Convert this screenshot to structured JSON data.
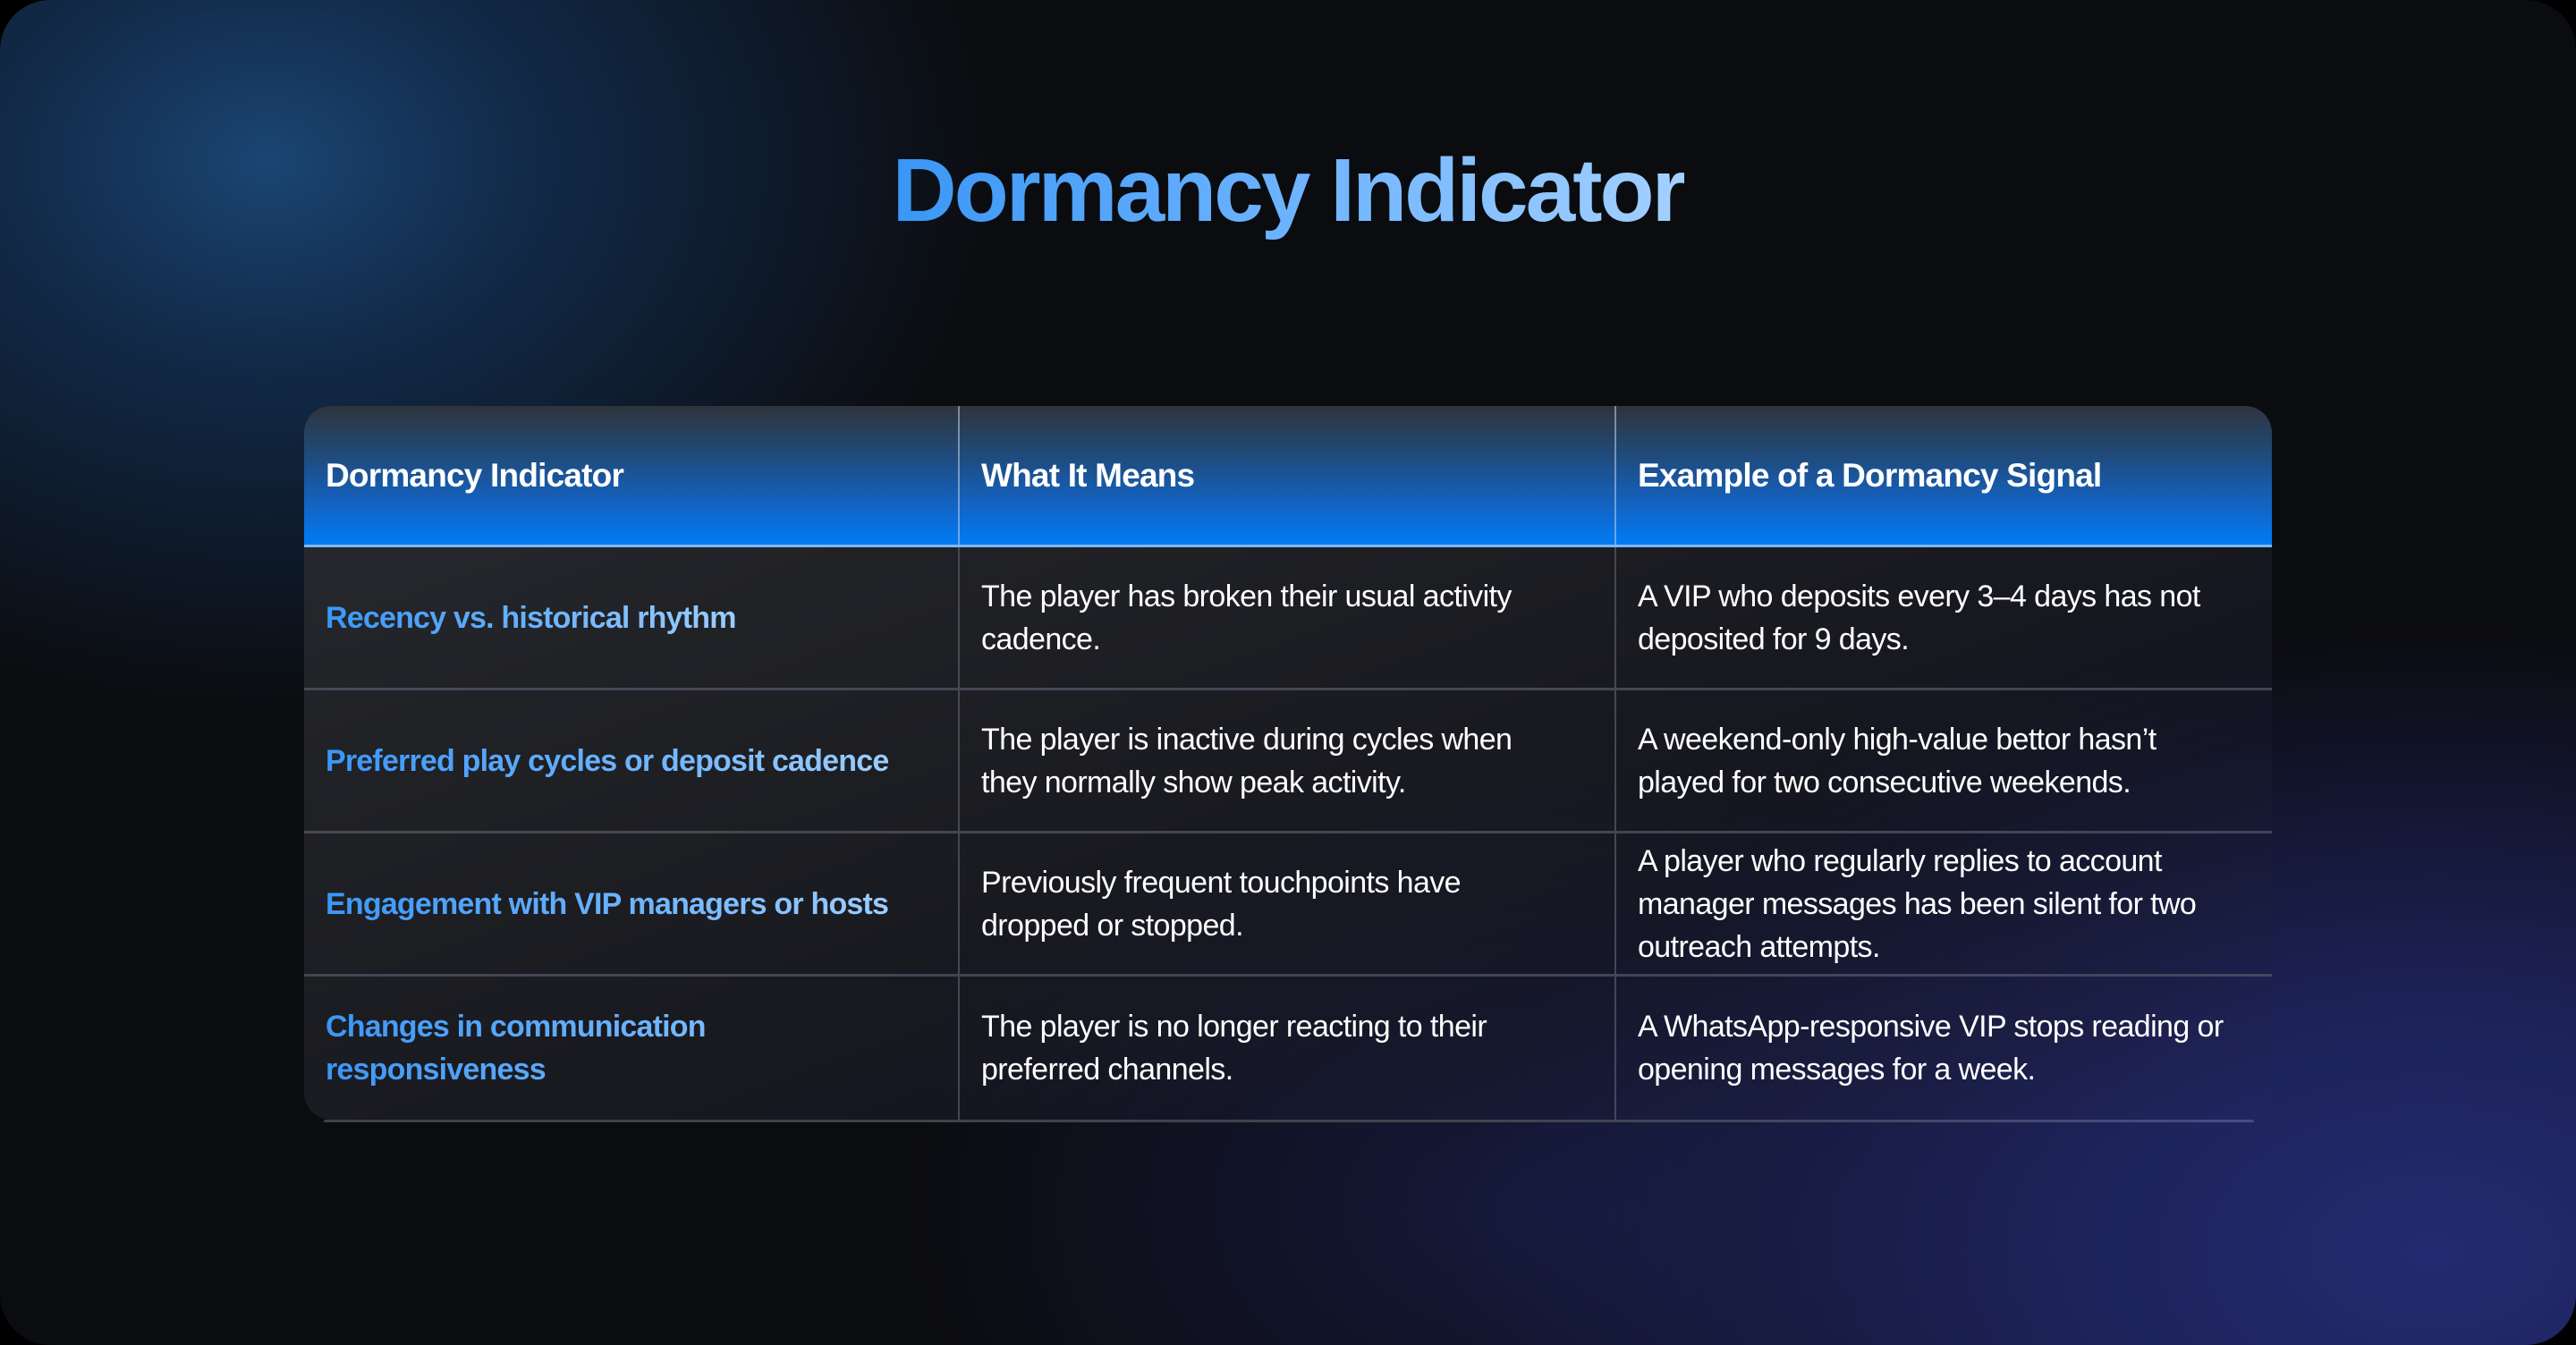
{
  "page": {
    "title": "Dormancy Indicator",
    "colors": {
      "title_gradient_start": "#3a96f5",
      "title_gradient_end": "#a3d0ff",
      "header_gradient_top": "#2f343c",
      "header_gradient_bottom": "#007bf5",
      "header_border": "#7eb8f5",
      "indicator_text": "#3a97f7",
      "body_text": "#ffffff",
      "background": "#0b0c0f",
      "glow_top_left": "#1b4878",
      "glow_bottom_right": "#242a70"
    }
  },
  "table": {
    "columns": [
      "Dormancy Indicator",
      "What It Means",
      "Example of a Dormancy Signal"
    ],
    "rows": [
      {
        "indicator": "Recency vs. historical rhythm",
        "meaning": "The player has broken their usual activity cadence.",
        "example": "A VIP who deposits every 3–4 days has not deposited for 9 days."
      },
      {
        "indicator": "Preferred play cycles or deposit cadence",
        "meaning": "The player is inactive during cycles when they normally show peak activity.",
        "example": "A weekend-only high-value bettor hasn’t played for two consecutive weekends."
      },
      {
        "indicator": "Engagement with VIP managers or hosts",
        "meaning": "Previously frequent touchpoints have dropped or stopped.",
        "example": "A player who regularly replies to account manager messages has been silent for two outreach attempts."
      },
      {
        "indicator": "Changes in communication responsiveness",
        "meaning": "The player is no longer reacting to their preferred channels.",
        "example": "A WhatsApp-responsive VIP stops reading or opening messages for a week."
      }
    ]
  }
}
